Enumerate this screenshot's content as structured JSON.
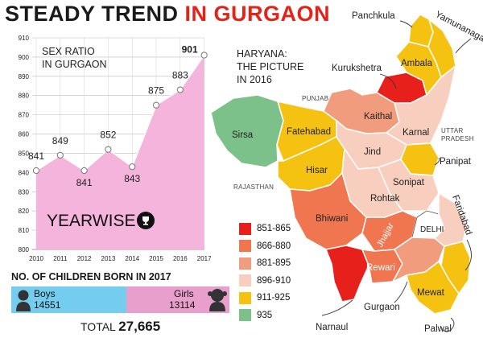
{
  "headline": {
    "part1": "STEADY TREND",
    "part2": "IN GURGAON"
  },
  "chart_data": {
    "type": "area",
    "title_lines": [
      "SEX RATIO",
      "IN GURGAON"
    ],
    "x": [
      "2010",
      "2011",
      "2012",
      "2013",
      "2014",
      "2015",
      "2016",
      "2017"
    ],
    "values": [
      841,
      849,
      841,
      852,
      843,
      875,
      883,
      901
    ],
    "ylim": [
      800,
      910
    ],
    "yticks": [
      800,
      810,
      820,
      830,
      840,
      850,
      860,
      870,
      880,
      890,
      900,
      910
    ],
    "grid": true,
    "fill_color": "#f4b4dc",
    "line_color": "#ffffff",
    "highlight_last": true
  },
  "yearwise_label": "YEARWISE",
  "children": {
    "title": "NO. OF CHILDREN BORN IN 2017",
    "boys_label": "Boys",
    "boys_value": 14551,
    "boys_value_text": "14551",
    "girls_label": "Girls",
    "girls_value": 13114,
    "girls_value_text": "13114",
    "boys_color": "#74cdee",
    "girls_color": "#e99fcc",
    "total_label": "TOTAL",
    "total_value": "27,665"
  },
  "map": {
    "title_lines": [
      "HARYANA:",
      "THE PICTURE",
      "IN 2016"
    ],
    "neighbors": {
      "punjab": "PUNJAB",
      "rajasthan": "RAJASTHAN",
      "uttar": "UTTAR",
      "pradesh": "PRADESH",
      "delhi": "DELHI"
    },
    "districts": {
      "panchkula": "Panchkula",
      "yamunanagar": "Yamunanagar",
      "ambala": "Ambala",
      "kurukshetra": "Kurukshetra",
      "kaithal": "Kaithal",
      "karnal": "Karnal",
      "sirsa": "Sirsa",
      "fatehabad": "Fatehabad",
      "jind": "Jind",
      "panipat": "Panipat",
      "hisar": "Hisar",
      "sonipat": "Sonipat",
      "rohtak": "Rohtak",
      "bhiwani": "Bhiwani",
      "jhajjar": "Jhajjar",
      "faridabad": "Faridabad",
      "rewari": "Rewari",
      "mewat": "Mewat",
      "gurgaon": "Gurgaon",
      "narnaul": "Narnaul",
      "palwal": "Palwal"
    },
    "legend": [
      {
        "label": "851-865",
        "color": "#e8201c"
      },
      {
        "label": "866-880",
        "color": "#f07650"
      },
      {
        "label": "881-895",
        "color": "#f19c7c"
      },
      {
        "label": "896-910",
        "color": "#f8cfbe"
      },
      {
        "label": "911-925",
        "color": "#f5c212"
      },
      {
        "label": "935",
        "color": "#7cc08a"
      }
    ]
  }
}
